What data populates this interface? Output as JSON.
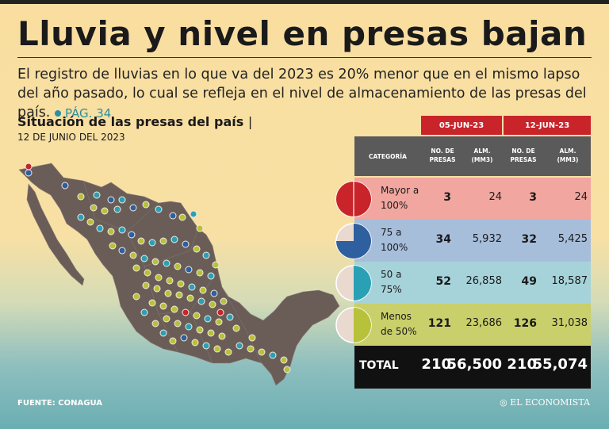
{
  "title": "Lluvia y nivel en presas bajan",
  "subtitle": "El registro de lluvias en lo que va del 2023 es 20% menor que en el mismo lapso del año pasado, lo cual se refleja en el nivel de almacenamiento de las presas del país.",
  "page_ref": "PÁG. 34",
  "section_title": "Situación de las presas del país",
  "section_sep": "|",
  "section_date": "12 DE JUNIO DEL 2023",
  "source": "FUENTE: CONAGUA",
  "brand": "EL ECONOMISTA",
  "colors": {
    "red": "#c8242a",
    "blue": "#2e5f9e",
    "teal": "#2aa0b5",
    "green": "#b8c13a",
    "row_red": "#f1a6a0",
    "row_blue": "#a7bedb",
    "row_teal": "#a6d3d9",
    "row_green": "#c9cf6a"
  },
  "chart_data": {
    "type": "table",
    "date_headers": [
      "05-JUN-23",
      "12-JUN-23"
    ],
    "column_headers": {
      "category": "CATEGORÍA",
      "num_presas": "NO. DE PRESAS",
      "alm": "ALM. (MM3)"
    },
    "rows": [
      {
        "category": "Mayor a 100%",
        "fill_fraction": 1.0,
        "color": "#c8242a",
        "row_color": "#f1a6a0",
        "presas_05": "3",
        "alm_05": "24",
        "presas_12": "3",
        "alm_12": "24"
      },
      {
        "category": "75 a 100%",
        "fill_fraction": 0.75,
        "color": "#2e5f9e",
        "row_color": "#a7bedb",
        "presas_05": "34",
        "alm_05": "5,932",
        "presas_12": "32",
        "alm_12": "5,425"
      },
      {
        "category": "50 a 75%",
        "fill_fraction": 0.5,
        "color": "#2aa0b5",
        "row_color": "#a6d3d9",
        "presas_05": "52",
        "alm_05": "26,858",
        "presas_12": "49",
        "alm_12": "18,587"
      },
      {
        "category": "Menos de 50%",
        "fill_fraction": 0.5,
        "color": "#b8c13a",
        "row_color": "#c9cf6a",
        "presas_05": "121",
        "alm_05": "23,686",
        "presas_12": "126",
        "alm_12": "31,038"
      }
    ],
    "total": {
      "label": "TOTAL",
      "presas_05": "210",
      "alm_05": "56,500",
      "presas_12": "210",
      "alm_12": "55,074"
    }
  }
}
